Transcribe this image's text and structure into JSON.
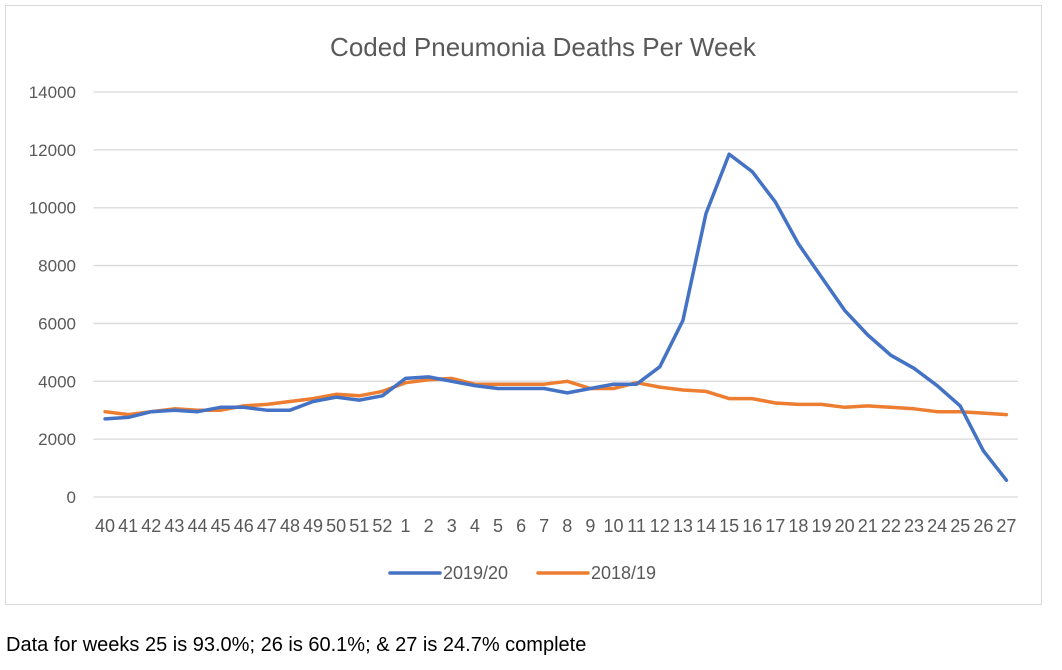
{
  "chart_data": {
    "type": "line",
    "title": "Coded Pneumonia Deaths Per Week",
    "xlabel": "",
    "ylabel": "",
    "ylim": [
      0,
      14000
    ],
    "yticks": [
      0,
      2000,
      4000,
      6000,
      8000,
      10000,
      12000,
      14000
    ],
    "grid": true,
    "legend_position": "bottom",
    "categories": [
      "40",
      "41",
      "42",
      "43",
      "44",
      "45",
      "46",
      "47",
      "48",
      "49",
      "50",
      "51",
      "52",
      "1",
      "2",
      "3",
      "4",
      "5",
      "6",
      "7",
      "8",
      "9",
      "10",
      "11",
      "12",
      "13",
      "14",
      "15",
      "16",
      "17",
      "18",
      "19",
      "20",
      "21",
      "22",
      "23",
      "24",
      "25",
      "26",
      "27"
    ],
    "series": [
      {
        "name": "2019/20",
        "color": "#4472c4",
        "values": [
          2700,
          2750,
          2950,
          3000,
          2950,
          3100,
          3100,
          3000,
          3000,
          3300,
          3450,
          3350,
          3500,
          4100,
          4150,
          4000,
          3850,
          3750,
          3750,
          3750,
          3600,
          3750,
          3900,
          3900,
          4500,
          6100,
          9800,
          11850,
          11250,
          10200,
          8750,
          7600,
          6450,
          5600,
          4900,
          4450,
          3850,
          3150,
          1600,
          580
        ]
      },
      {
        "name": "2018/19",
        "color": "#ed7d31",
        "values": [
          2950,
          2850,
          2950,
          3050,
          3000,
          3000,
          3150,
          3200,
          3300,
          3400,
          3550,
          3500,
          3650,
          3950,
          4050,
          4100,
          3900,
          3900,
          3900,
          3900,
          4000,
          3750,
          3750,
          3950,
          3800,
          3700,
          3650,
          3400,
          3400,
          3250,
          3200,
          3200,
          3100,
          3150,
          3100,
          3050,
          2950,
          2950,
          2900,
          2850
        ]
      }
    ]
  },
  "footnote": "Data for weeks 25 is 93.0%; 26 is 60.1%; & 27 is 24.7% complete"
}
